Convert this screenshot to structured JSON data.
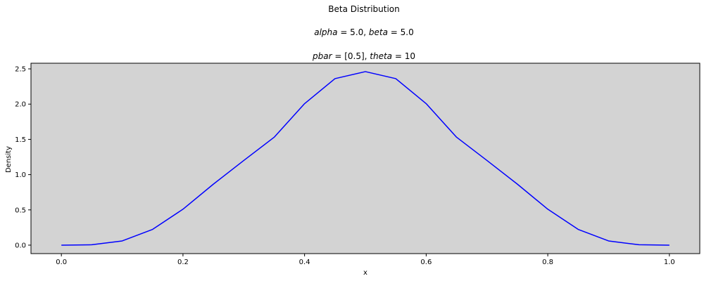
{
  "chart_data": {
    "type": "line",
    "title": "Beta Distribution",
    "subtitle_lines": [
      {
        "parts": [
          {
            "text": "alpha",
            "italic": true
          },
          {
            "text": " = 5.0, ",
            "italic": false
          },
          {
            "text": "beta",
            "italic": true
          },
          {
            "text": " = 5.0",
            "italic": false
          }
        ]
      },
      {
        "parts": [
          {
            "text": "pbar",
            "italic": true
          },
          {
            "text": " = [0.5], ",
            "italic": false
          },
          {
            "text": "theta",
            "italic": true
          },
          {
            "text": " = 10",
            "italic": false
          }
        ]
      }
    ],
    "xlabel": "x",
    "ylabel": "Density",
    "xlim": [
      -0.05,
      1.05
    ],
    "ylim": [
      -0.12,
      2.58
    ],
    "xticks": [
      "0.0",
      "0.2",
      "0.4",
      "0.6",
      "0.8",
      "1.0"
    ],
    "yticks": [
      "0.0",
      "0.5",
      "1.0",
      "1.5",
      "2.0",
      "2.5"
    ],
    "grid": false,
    "background": "#d3d3d3",
    "series": [
      {
        "color": "#0000ff",
        "x": [
          0.0,
          0.05,
          0.1,
          0.15,
          0.2,
          0.25,
          0.3,
          0.35,
          0.4,
          0.45,
          0.5,
          0.55,
          0.6,
          0.65,
          0.7,
          0.75,
          0.8,
          0.85,
          0.9,
          0.95,
          1.0
        ],
        "y": [
          0.0,
          0.0052,
          0.0596,
          0.2235,
          0.5096,
          0.8651,
          1.2005,
          1.5305,
          2.0066,
          2.3615,
          2.4609,
          2.3615,
          2.0066,
          1.5305,
          1.2005,
          0.8651,
          0.5096,
          0.2235,
          0.0596,
          0.0052,
          0.0
        ]
      }
    ]
  }
}
